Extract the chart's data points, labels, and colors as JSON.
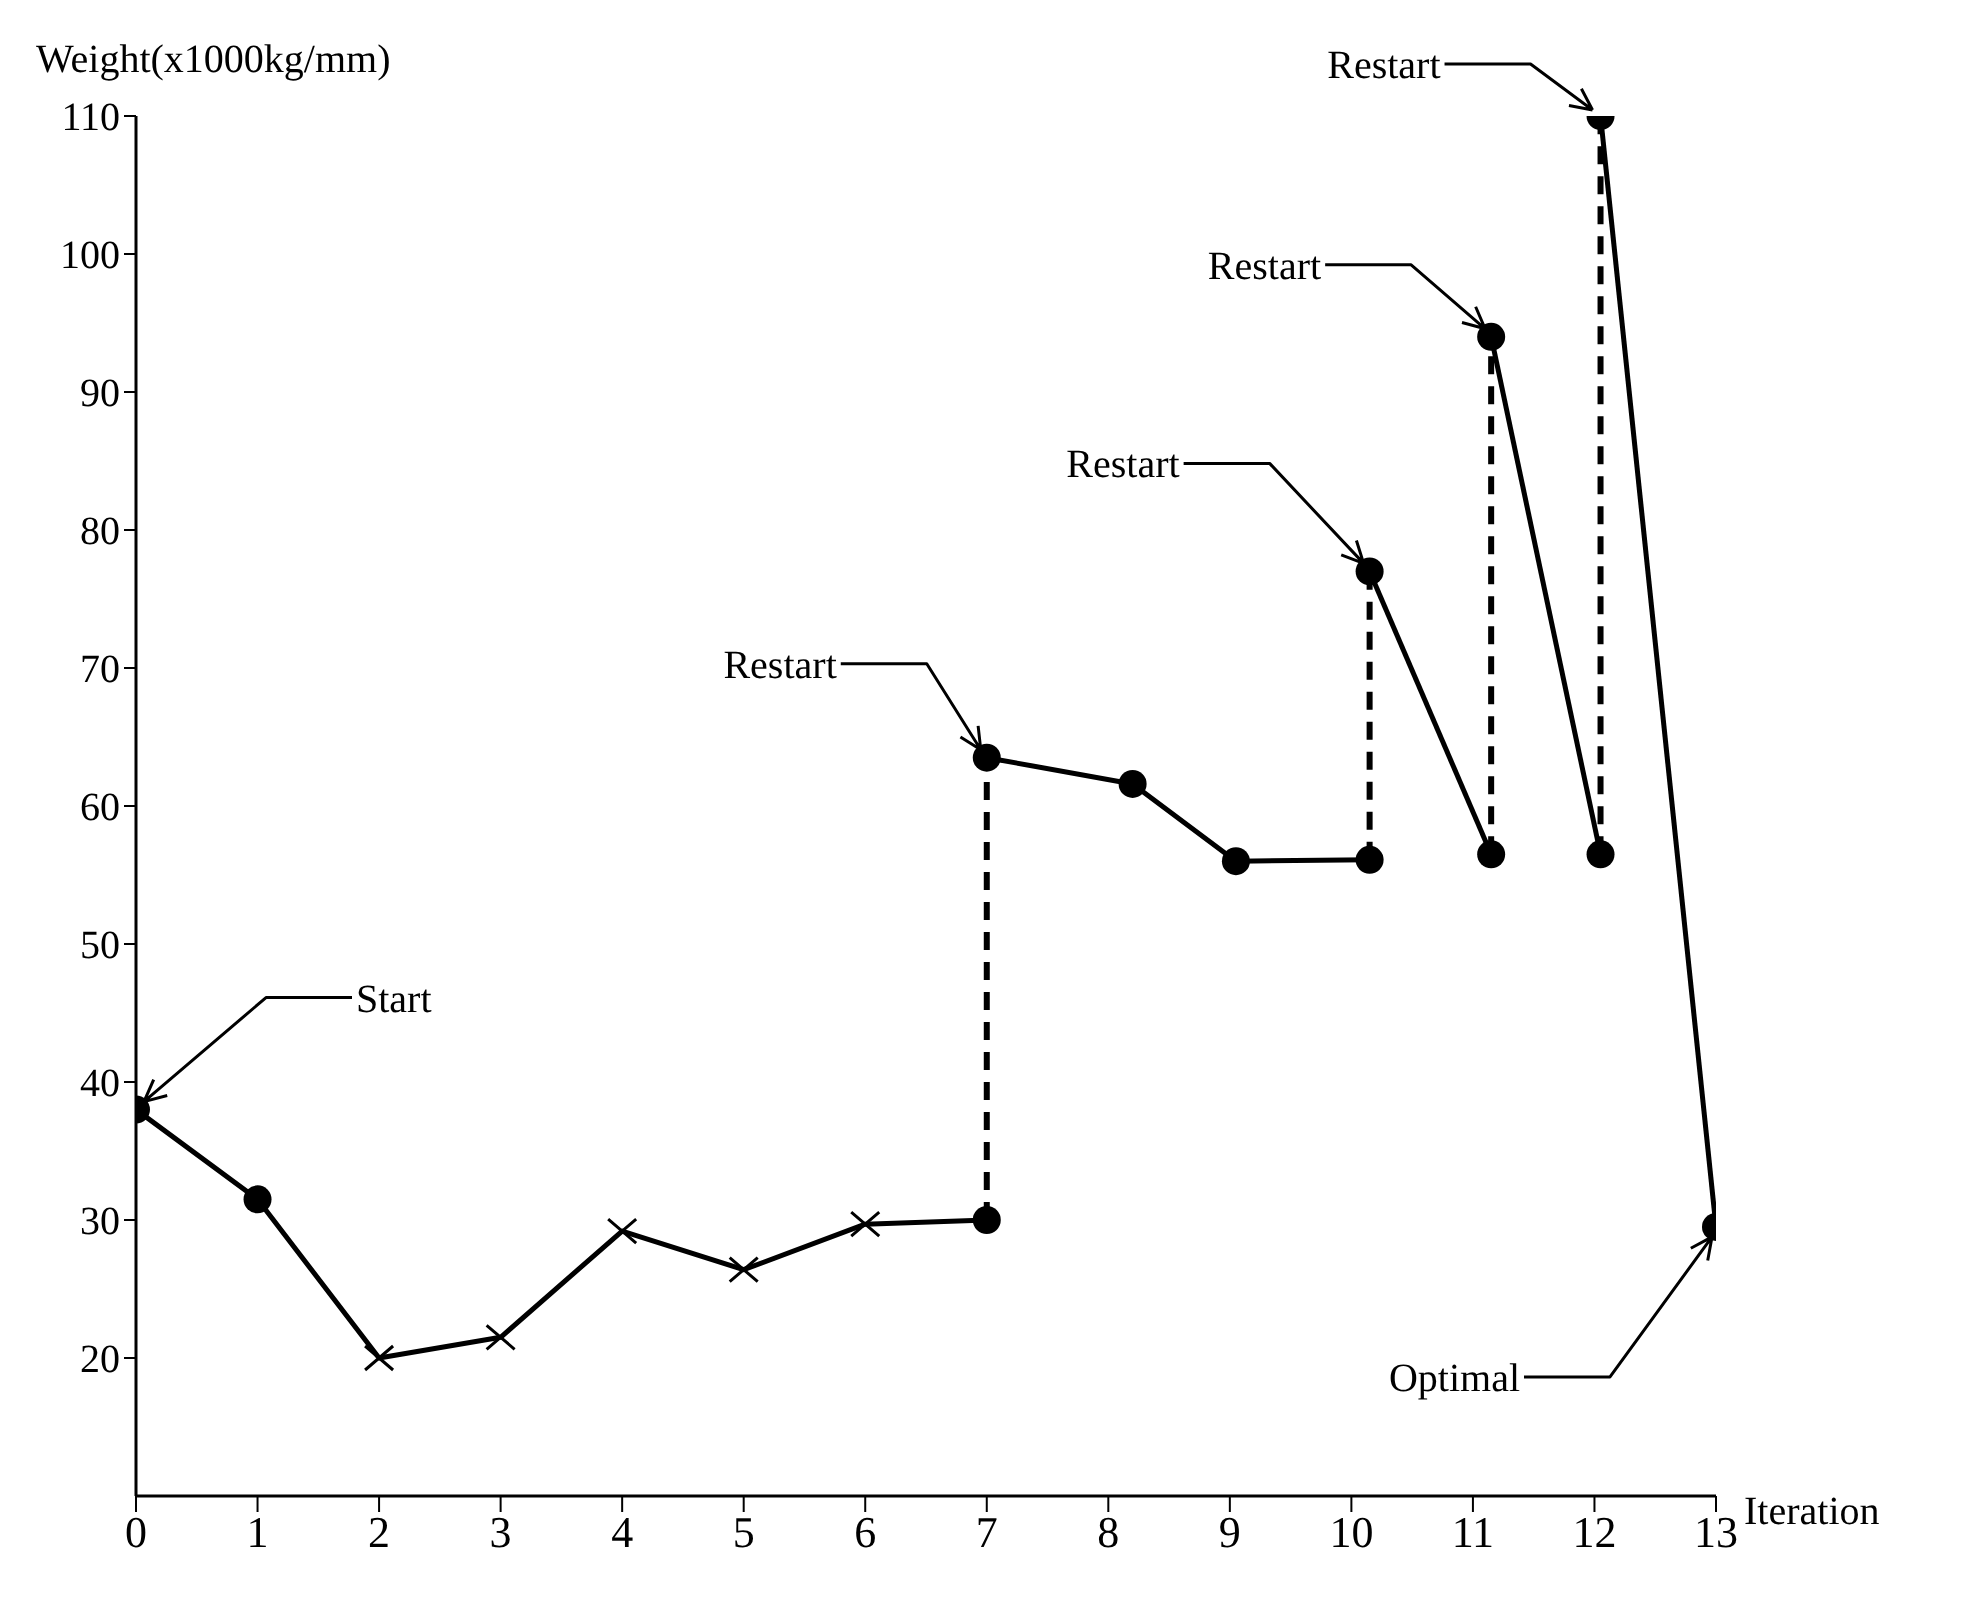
{
  "chart_data": {
    "type": "line",
    "xlabel": "Iteration",
    "ylabel": "Weight(x1000kg/mm)",
    "xlim": [
      0,
      13
    ],
    "xticks": [
      0,
      1,
      2,
      3,
      4,
      5,
      6,
      7,
      8,
      9,
      10,
      11,
      12,
      13
    ],
    "ylim": [
      10,
      110
    ],
    "yticks": [
      20,
      30,
      40,
      50,
      60,
      70,
      80,
      90,
      100,
      110
    ],
    "series": [
      {
        "type": "line",
        "color": "#000000",
        "line_style": "solid",
        "marker": "none",
        "x": [
          0,
          1,
          2,
          3,
          4,
          5,
          6,
          7
        ],
        "values": [
          38,
          31.5,
          20,
          21.5,
          29.2,
          26.4,
          29.7,
          30
        ]
      },
      {
        "type": "line",
        "color": "#000000",
        "line_style": "solid",
        "marker": "none",
        "x": [
          7,
          8.2,
          9.05,
          10.15
        ],
        "values": [
          63.5,
          61.6,
          56,
          56.1
        ]
      },
      {
        "type": "line",
        "color": "#000000",
        "line_style": "solid",
        "marker": "none",
        "x": [
          10.15,
          11.15
        ],
        "values": [
          77,
          56.5
        ]
      },
      {
        "type": "line",
        "color": "#000000",
        "line_style": "solid",
        "marker": "none",
        "x": [
          11.15,
          12.05
        ],
        "values": [
          94,
          56.5
        ]
      },
      {
        "type": "line",
        "color": "#000000",
        "line_style": "solid",
        "marker": "none",
        "x": [
          12.05,
          13
        ],
        "values": [
          110,
          29.5
        ]
      },
      {
        "type": "line",
        "color": "#000000",
        "line_style": "dashed",
        "marker": "none",
        "x": [
          7,
          7
        ],
        "values": [
          30,
          63.5
        ]
      },
      {
        "type": "line",
        "color": "#000000",
        "line_style": "dashed",
        "marker": "none",
        "x": [
          10.15,
          10.15
        ],
        "values": [
          56.1,
          77
        ]
      },
      {
        "type": "line",
        "color": "#000000",
        "line_style": "dashed",
        "marker": "none",
        "x": [
          11.15,
          11.15
        ],
        "values": [
          56.5,
          94
        ]
      },
      {
        "type": "line",
        "color": "#000000",
        "line_style": "dashed",
        "marker": "none",
        "x": [
          12.05,
          12.05
        ],
        "values": [
          56.5,
          110
        ]
      },
      {
        "type": "scatter",
        "color": "#000000",
        "marker": "circle",
        "x": [
          0,
          1,
          7,
          7,
          8.2,
          9.05,
          10.15,
          10.15,
          11.15,
          11.15,
          12.05,
          12.05,
          13
        ],
        "values": [
          38,
          31.5,
          30,
          63.5,
          61.6,
          56,
          56.1,
          77,
          56.5,
          94,
          56.5,
          110,
          29.5
        ]
      },
      {
        "type": "scatter",
        "color": "#000000",
        "marker": "cross",
        "x": [
          2,
          3,
          4,
          5,
          6
        ],
        "values": [
          20,
          21.5,
          29.2,
          26.4,
          29.7
        ]
      }
    ],
    "annotations": [
      {
        "text": "Start",
        "x": 0,
        "y": 38
      },
      {
        "text": "Restart",
        "x": 7,
        "y": 63.5
      },
      {
        "text": "Restart",
        "x": 10.15,
        "y": 77
      },
      {
        "text": "Restart",
        "x": 11.15,
        "y": 94
      },
      {
        "text": "Restart",
        "x": 12.05,
        "y": 110
      },
      {
        "text": "Optimal",
        "x": 13,
        "y": 29.5
      }
    ]
  }
}
